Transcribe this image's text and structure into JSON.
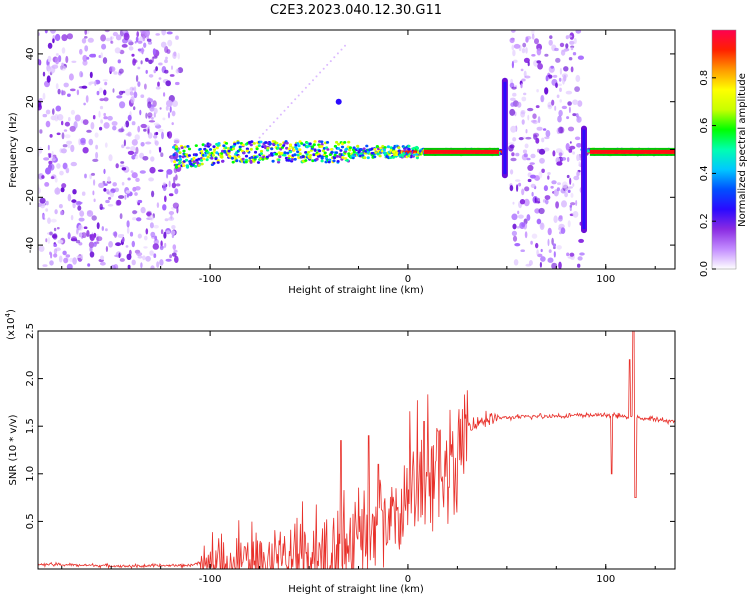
{
  "figure": {
    "title": "C2E3.2023.040.12.30.G11"
  },
  "chart_data": [
    {
      "type": "heatmap",
      "xlabel": "Height of straight line (km)",
      "ylabel": "Frequency (Hz)",
      "xlim": [
        -187,
        135
      ],
      "ylim": [
        -50,
        50
      ],
      "xticks": [
        -100,
        0,
        100
      ],
      "yticks": [
        -40,
        -20,
        0,
        20,
        40
      ],
      "colorbar": {
        "label": "Normalized spectral amplitude",
        "range": [
          0,
          1
        ],
        "ticks": [
          "0.0",
          "0.2",
          "0.4",
          "0.6",
          "0.8"
        ],
        "colors": [
          "#ffffff",
          "#c38cff",
          "#8a2be2",
          "#2a0aff",
          "#0050ff",
          "#00c8ff",
          "#00ffb0",
          "#00ff00",
          "#c8ff00",
          "#ffff00",
          "#ff9900",
          "#ff2000",
          "#ff0050"
        ]
      },
      "ridge": [
        [
          -118,
          -3
        ],
        [
          -110,
          -3
        ],
        [
          -100,
          -2
        ],
        [
          -90,
          -1
        ],
        [
          -80,
          -1
        ],
        [
          -70,
          -1
        ],
        [
          -60,
          -1
        ],
        [
          -50,
          -1
        ],
        [
          -40,
          -1
        ],
        [
          -30,
          -1
        ],
        [
          -20,
          -1
        ],
        [
          -10,
          -1
        ],
        [
          0,
          -1
        ],
        [
          10,
          -1
        ],
        [
          20,
          -1
        ],
        [
          30,
          -1
        ],
        [
          40,
          -1
        ],
        [
          46,
          -1
        ],
        [
          90,
          -1
        ],
        [
          100,
          -1
        ],
        [
          110,
          -1
        ],
        [
          120,
          -1
        ],
        [
          135,
          -1
        ]
      ],
      "noise_regions": [
        [
          -187,
          -115
        ],
        [
          52,
          88
        ]
      ],
      "vertical_streaks": [
        [
          49,
          -12,
          30
        ],
        [
          89,
          -35,
          10
        ]
      ],
      "isolated_spot": [
        -35,
        20
      ]
    },
    {
      "type": "line",
      "xlabel": "Height of straight line (km)",
      "ylabel": "SNR (10 * v/v)",
      "multiplier_label": "(x10",
      "multiplier_exp": "4",
      "xlim": [
        -187,
        135
      ],
      "ylim": [
        0,
        2.5
      ],
      "xticks": [
        -100,
        0,
        100
      ],
      "yticks": [
        "0.5",
        "1.0",
        "1.5",
        "2.0",
        "2.5"
      ],
      "color": "#e8302a",
      "trend": [
        [
          -187,
          0.05
        ],
        [
          -140,
          0.03
        ],
        [
          -110,
          0.04
        ],
        [
          -100,
          0.1
        ],
        [
          -90,
          0.15
        ],
        [
          -80,
          0.2
        ],
        [
          -60,
          0.25
        ],
        [
          -50,
          0.3
        ],
        [
          -40,
          0.35
        ],
        [
          -30,
          0.4
        ],
        [
          -20,
          0.6
        ],
        [
          -10,
          0.8
        ],
        [
          0,
          0.95
        ],
        [
          10,
          1.15
        ],
        [
          20,
          1.35
        ],
        [
          30,
          1.5
        ],
        [
          40,
          1.58
        ],
        [
          60,
          1.6
        ],
        [
          80,
          1.61
        ],
        [
          100,
          1.62
        ],
        [
          110,
          1.6
        ],
        [
          120,
          1.58
        ],
        [
          135,
          1.55
        ]
      ],
      "spikes": [
        [
          -34,
          1.35
        ],
        [
          -20,
          1.4
        ],
        [
          -15,
          1.1
        ],
        [
          8,
          1.55
        ],
        [
          15,
          1.45
        ],
        [
          103,
          1.0
        ],
        [
          112,
          2.2
        ],
        [
          114,
          2.5
        ],
        [
          115,
          0.75
        ]
      ]
    }
  ]
}
